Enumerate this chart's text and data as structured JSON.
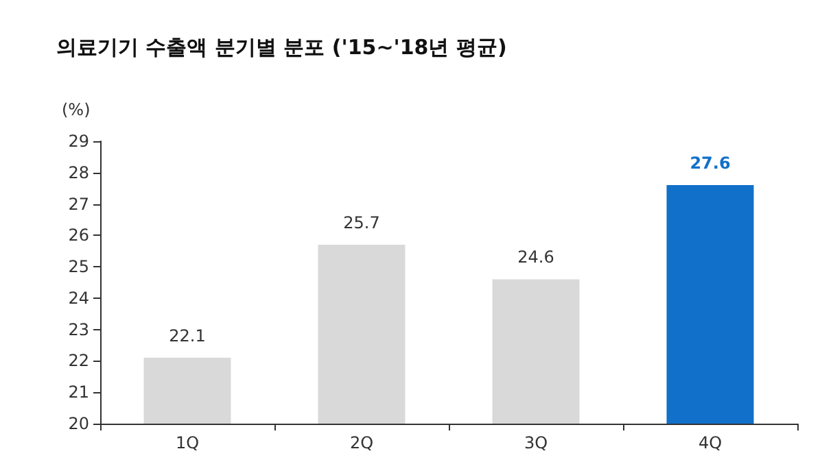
{
  "chart_data": {
    "type": "bar",
    "title": "의료기기 수출액 분기별 분포 ('15~'18년 평균)",
    "ylabel": "(%)",
    "categories": [
      "1Q",
      "2Q",
      "3Q",
      "4Q"
    ],
    "values": [
      22.1,
      25.7,
      24.6,
      27.6
    ],
    "colors": [
      "#d9d9d9",
      "#d9d9d9",
      "#d9d9d9",
      "#1170c9"
    ],
    "ylim": [
      20,
      29
    ],
    "yticks": [
      20,
      21,
      22,
      23,
      24,
      25,
      26,
      27,
      28,
      29
    ],
    "data_labels": true,
    "grid": false
  }
}
